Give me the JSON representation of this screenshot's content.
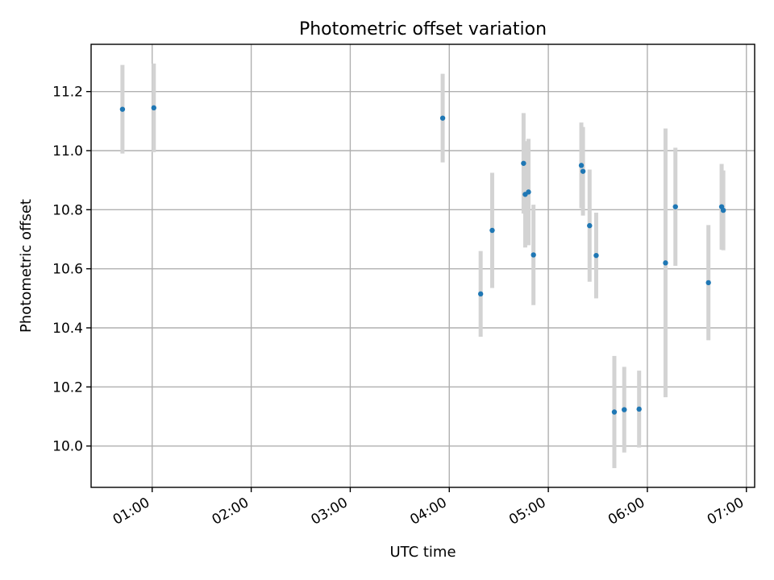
{
  "chart_data": {
    "type": "scatter",
    "title": "Photometric offset variation",
    "xlabel": "UTC time",
    "ylabel": "Photometric offset",
    "grid": true,
    "x_axis": {
      "unit": "UTC time",
      "range": [
        "00:23",
        "07:05"
      ],
      "ticks": [
        "01:00",
        "02:00",
        "03:00",
        "04:00",
        "05:00",
        "06:00",
        "07:00"
      ]
    },
    "y_axis": {
      "range": [
        9.86,
        11.36
      ],
      "ticks": [
        10.0,
        10.2,
        10.4,
        10.6,
        10.8,
        11.0,
        11.2
      ]
    },
    "colors": {
      "points": "#1f77b4",
      "error_bars": "#d3d3d3",
      "grid": "#b0b0b0"
    },
    "points": [
      {
        "x": "00:42",
        "y": 11.14,
        "yerr": 0.15
      },
      {
        "x": "01:01",
        "y": 11.145,
        "yerr": 0.15
      },
      {
        "x": "03:56",
        "y": 11.11,
        "yerr": 0.15
      },
      {
        "x": "04:19",
        "y": 10.515,
        "yerr": 0.145
      },
      {
        "x": "04:26",
        "y": 10.73,
        "yerr": 0.195
      },
      {
        "x": "04:45",
        "y": 10.957,
        "yerr": 0.17
      },
      {
        "x": "04:46",
        "y": 10.852,
        "yerr": 0.18
      },
      {
        "x": "04:48",
        "y": 10.86,
        "yerr": 0.18
      },
      {
        "x": "04:51",
        "y": 10.647,
        "yerr": 0.17
      },
      {
        "x": "05:20",
        "y": 10.95,
        "yerr": 0.145
      },
      {
        "x": "05:21",
        "y": 10.93,
        "yerr": 0.15
      },
      {
        "x": "05:25",
        "y": 10.746,
        "yerr": 0.19
      },
      {
        "x": "05:29",
        "y": 10.645,
        "yerr": 0.145
      },
      {
        "x": "05:40",
        "y": 10.115,
        "yerr": 0.19
      },
      {
        "x": "05:46",
        "y": 10.123,
        "yerr": 0.145
      },
      {
        "x": "05:55",
        "y": 10.125,
        "yerr": 0.13
      },
      {
        "x": "06:11",
        "y": 10.62,
        "yerr": 0.455
      },
      {
        "x": "06:17",
        "y": 10.81,
        "yerr": 0.2
      },
      {
        "x": "06:37",
        "y": 10.553,
        "yerr": 0.195
      },
      {
        "x": "06:45",
        "y": 10.81,
        "yerr": 0.145
      },
      {
        "x": "06:46",
        "y": 10.798,
        "yerr": 0.135
      }
    ]
  }
}
